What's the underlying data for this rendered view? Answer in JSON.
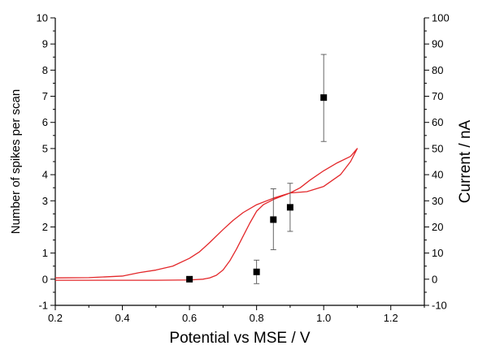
{
  "chart_data": {
    "type": "scatter",
    "title": "",
    "xlabel": "Potential vs MSE / V",
    "ylabel": "Number of spikes per scan",
    "y2label": "Current / nA",
    "xlim": [
      0.2,
      1.3
    ],
    "ylim": [
      -1,
      10
    ],
    "y2lim": [
      -10,
      100
    ],
    "x_ticks": [
      "0.2",
      "0.4",
      "0.6",
      "0.8",
      "1.0",
      "1.2"
    ],
    "y_ticks": [
      "-1",
      "0",
      "1",
      "2",
      "3",
      "4",
      "5",
      "6",
      "7",
      "8",
      "9",
      "10"
    ],
    "y2_ticks": [
      "-10",
      "0",
      "10",
      "20",
      "30",
      "40",
      "50",
      "60",
      "70",
      "80",
      "90",
      "100"
    ],
    "grid": false,
    "series": [
      {
        "kind": "points",
        "axis": "left",
        "color": "#000000",
        "marker": "square",
        "x": [
          0.6,
          0.8,
          0.85,
          0.9,
          1.0
        ],
        "y": [
          0.0,
          0.28,
          2.28,
          2.75,
          6.95
        ],
        "err_low": [
          0.0,
          0.45,
          1.15,
          0.92,
          1.68
        ],
        "err_high": [
          0.0,
          0.45,
          1.18,
          0.92,
          1.65
        ]
      },
      {
        "kind": "line",
        "axis": "right",
        "color": "#e3272a",
        "x": [
          0.2,
          0.3,
          0.4,
          0.45,
          0.5,
          0.55,
          0.6,
          0.63,
          0.66,
          0.7,
          0.73,
          0.76,
          0.8,
          0.85,
          0.9,
          0.95,
          1.0,
          1.05,
          1.08,
          1.1,
          1.08,
          1.04,
          1.0,
          0.96,
          0.93,
          0.9,
          0.87,
          0.85,
          0.82,
          0.8,
          0.78,
          0.76,
          0.74,
          0.72,
          0.7,
          0.68,
          0.66,
          0.64,
          0.6,
          0.5,
          0.4,
          0.3,
          0.2
        ],
        "y": [
          0.5,
          0.6,
          1.2,
          2.5,
          3.5,
          5.0,
          8.0,
          10.5,
          14.0,
          19.0,
          22.5,
          25.5,
          28.5,
          31.0,
          33.0,
          33.5,
          35.5,
          40.0,
          45.0,
          50.0,
          47.0,
          44.5,
          41.5,
          38.0,
          35.0,
          33.0,
          31.5,
          30.5,
          28.5,
          26.0,
          21.5,
          16.5,
          11.5,
          7.0,
          3.5,
          1.5,
          0.5,
          0.0,
          -0.3,
          -0.4,
          -0.4,
          -0.4,
          -0.4
        ]
      }
    ]
  }
}
